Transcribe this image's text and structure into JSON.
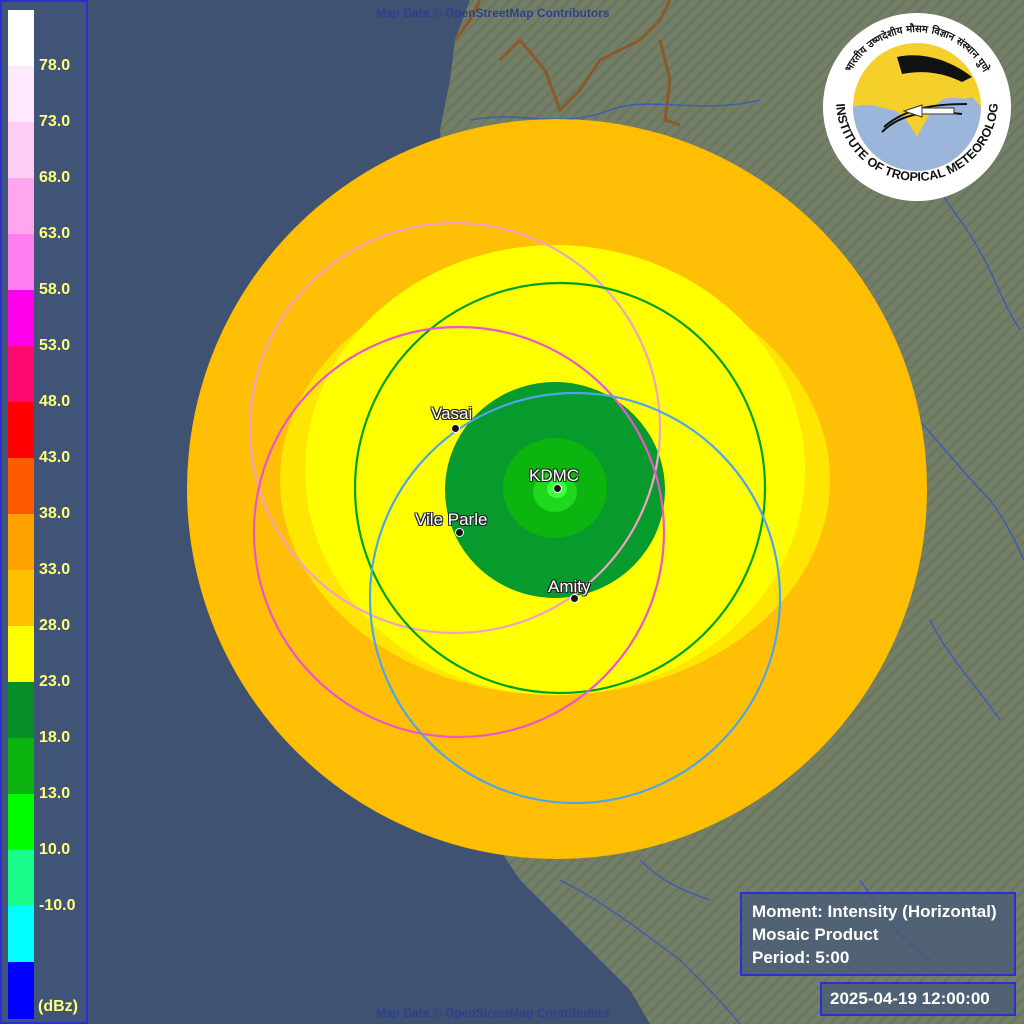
{
  "attribution": "Map Data © OpenStreetMap Contributors",
  "legend": {
    "unit": "(dBz)",
    "ticks": [
      "78.0",
      "73.0",
      "68.0",
      "63.0",
      "58.0",
      "53.0",
      "48.0",
      "43.0",
      "38.0",
      "33.0",
      "28.0",
      "23.0",
      "18.0",
      "13.0",
      "10.0",
      "-10.0"
    ],
    "colors": [
      "#ffffff",
      "#ffe9ff",
      "#ffcdf3",
      "#ffa6ef",
      "#ff7ff0",
      "#ff00ea",
      "#ff0a6e",
      "#ff0000",
      "#ff5a00",
      "#ffa200",
      "#ffc000",
      "#ffff00",
      "#058e26",
      "#0bb40e",
      "#00fe00",
      "#19fb8a",
      "#00ffff",
      "#0000ff"
    ]
  },
  "radar_sites": [
    {
      "name": "Vasai",
      "ring_color": "#f0a3c0"
    },
    {
      "name": "KDMC",
      "ring_color": "#00a020"
    },
    {
      "name": "Vile Parle",
      "ring_color": "#ee55cc"
    },
    {
      "name": "Amity",
      "ring_color": "#4fa6e6"
    }
  ],
  "info": {
    "moment": "Moment: Intensity (Horizontal)",
    "product": "Mosaic Product",
    "period": "Period: 5:00"
  },
  "timestamp": "2025-04-19 12:00:00",
  "logo": {
    "text": "INDIAN INSTITUTE OF TROPICAL METEOROLOGY PUNE",
    "hindi_text": "भारतीय उष्णदेशीय मौसम विज्ञान संस्थान पुणे"
  },
  "colors": {
    "ocean": "#3f5272",
    "land": "#707c64",
    "echo_outer": "#ffbe00",
    "echo_mid": "#ffff00",
    "echo_inner": "#079a2c",
    "echo_core": "#1ed81e",
    "legend_border": "#2b2fd1"
  }
}
